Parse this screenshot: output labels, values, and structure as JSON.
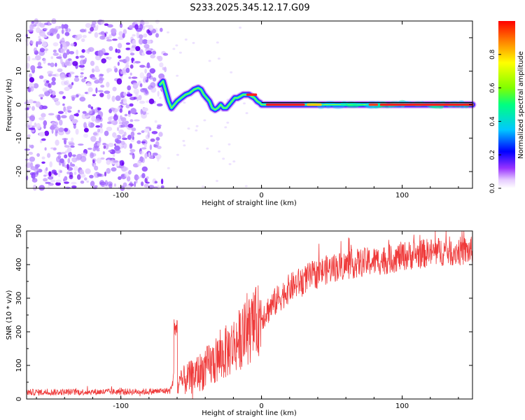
{
  "title": "S233.2025.345.12.17.G09",
  "chart_data": [
    {
      "type": "heatmap",
      "name": "spectrogram",
      "xlabel": "Height of straight line (km)",
      "ylabel": "Frequency (Hz)",
      "xlim": [
        -167,
        150
      ],
      "ylim": [
        -25,
        25
      ],
      "xticks": [
        -100,
        0,
        100
      ],
      "yticks": [
        -20,
        -10,
        0,
        10,
        20
      ],
      "colorbar": {
        "label": "Normalized spectral amplitude",
        "range": [
          0,
          1
        ],
        "ticks": [
          "0.0",
          "0.2",
          "0.4",
          "0.6",
          "0.8"
        ]
      },
      "ridge": {
        "description": "frequency centroid of the carrier vs height",
        "x": [
          -72,
          -70,
          -68,
          -66,
          -64,
          -62,
          -60,
          -57,
          -54,
          -51,
          -48,
          -45,
          -43,
          -41,
          -39,
          -37,
          -35,
          -33,
          -31,
          -29,
          -27,
          -25,
          -23,
          -21,
          -19,
          -17,
          -15,
          -13,
          -11,
          -9,
          -7,
          -5,
          -3,
          -1,
          0,
          150
        ],
        "y": [
          6,
          7,
          4,
          1,
          -1,
          0,
          1,
          2,
          3,
          3.5,
          4.5,
          5,
          4.5,
          3,
          2,
          1,
          -1,
          -1.5,
          -1,
          0,
          -1,
          -1,
          0,
          1,
          2,
          2,
          2.5,
          3,
          3,
          3,
          2.5,
          2,
          1,
          0.5,
          0,
          0
        ],
        "constant_from_x": 0,
        "constant_y": 0
      },
      "noise_region_x": [
        -167,
        -67
      ]
    },
    {
      "type": "line",
      "name": "snr",
      "xlabel": "Height of straight line (km)",
      "ylabel": "SNR (10 * v/v)",
      "xlim": [
        -167,
        150
      ],
      "ylim": [
        0,
        500
      ],
      "xticks": [
        -100,
        0,
        100
      ],
      "yticks": [
        0,
        100,
        200,
        300,
        400,
        500
      ],
      "color": "#ef3a3a",
      "trend": {
        "x": [
          -167,
          -80,
          -65,
          -62,
          -60,
          -55,
          -50,
          -40,
          -30,
          -20,
          -10,
          0,
          10,
          20,
          30,
          40,
          50,
          60,
          70,
          80,
          90,
          100,
          110,
          120,
          130,
          140,
          150
        ],
        "y": [
          20,
          22,
          25,
          60,
          35,
          55,
          65,
          90,
          120,
          160,
          200,
          245,
          290,
          330,
          355,
          375,
          390,
          398,
          405,
          410,
          415,
          425,
          430,
          435,
          440,
          440,
          440
        ]
      },
      "spike": {
        "x": -61,
        "y": 245
      }
    }
  ]
}
